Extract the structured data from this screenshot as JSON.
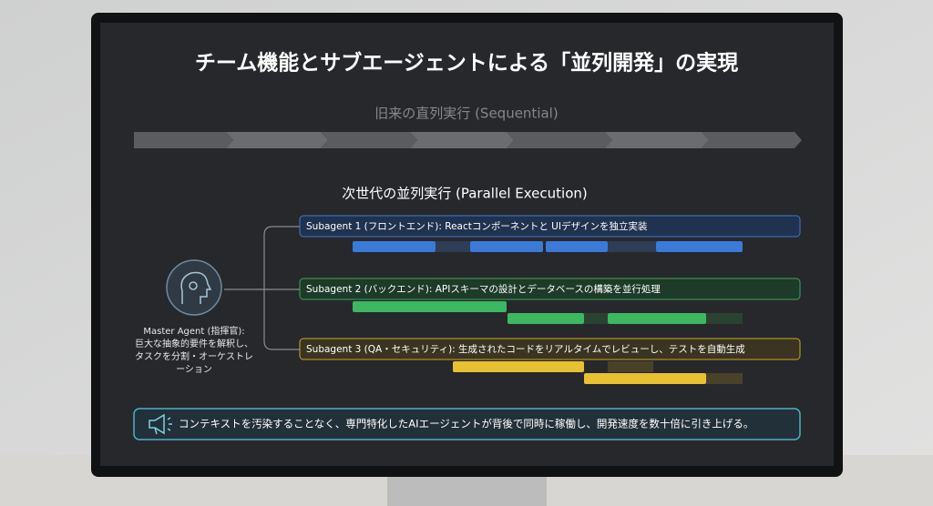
{
  "title": "チーム機能とサブエージェントによる「並列開発」の実現",
  "sequential_label": "旧来の直列実行 (Sequential)",
  "parallel_label": "次世代の並列実行 (Parallel Execution)",
  "master": {
    "name": "Master Agent (指揮官):",
    "description_lines": [
      "巨大な抽象的要件を解釈し、",
      "タスクを分割・オーケストレ",
      "ーション"
    ]
  },
  "subagents": [
    {
      "label": "Subagent 1 (フロントエンド): Reactコンポーネントと UIデザインを独立実装"
    },
    {
      "label": "Subagent 2 (バックエンド): APIスキーマの設計とデータベースの構築を並行処理"
    },
    {
      "label": "Subagent 3 (QA・セキュリティ): 生成されたコードをリアルタイムでレビューし、テストを自動生成"
    }
  ],
  "footer": "コンテキストを汚染することなく、専門特化したAIエージェントが背後で同時に稼働し、開発速度を数十倍に引き上げる。"
}
